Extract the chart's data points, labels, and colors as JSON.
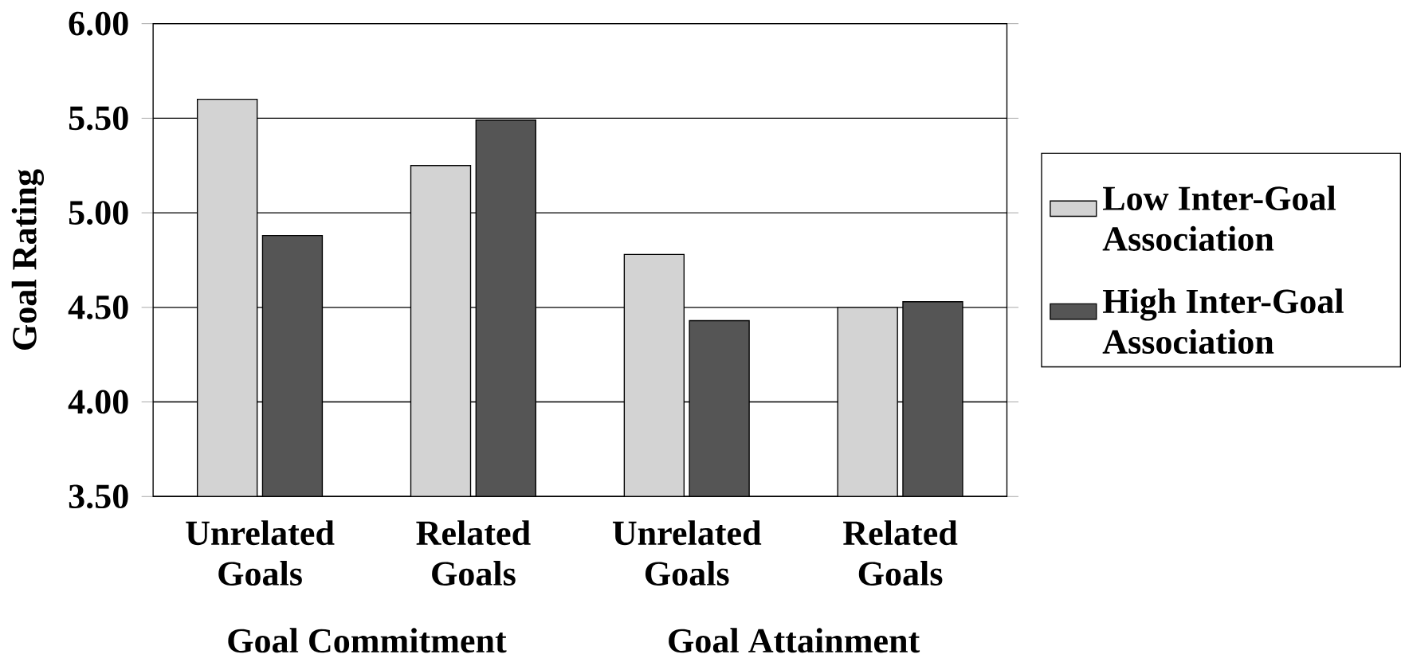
{
  "chart_data": {
    "type": "bar",
    "ylabel": "Goal Rating",
    "categories": [
      "Unrelated Goals",
      "Related Goals",
      "Unrelated Goals",
      "Related Goals"
    ],
    "series": [
      {
        "name": "Low Inter-Goal Association",
        "color": "#d3d3d3",
        "values": [
          5.6,
          5.25,
          4.78,
          4.5
        ]
      },
      {
        "name": "High Inter-Goal Association",
        "color": "#555555",
        "values": [
          4.88,
          5.49,
          4.43,
          4.53
        ]
      }
    ],
    "ylim": [
      3.5,
      6.0
    ],
    "yticks": [
      {
        "value": 3.5,
        "label": "3.50"
      },
      {
        "value": 4.0,
        "label": "4.00"
      },
      {
        "value": 4.5,
        "label": "4.50"
      },
      {
        "value": 5.0,
        "label": "5.00"
      },
      {
        "value": 5.5,
        "label": "5.50"
      },
      {
        "value": 6.0,
        "label": "6.00"
      }
    ],
    "grid": "y",
    "legend": "right",
    "annotations": [
      "Goal Commitment",
      "Goal Attainment"
    ]
  }
}
